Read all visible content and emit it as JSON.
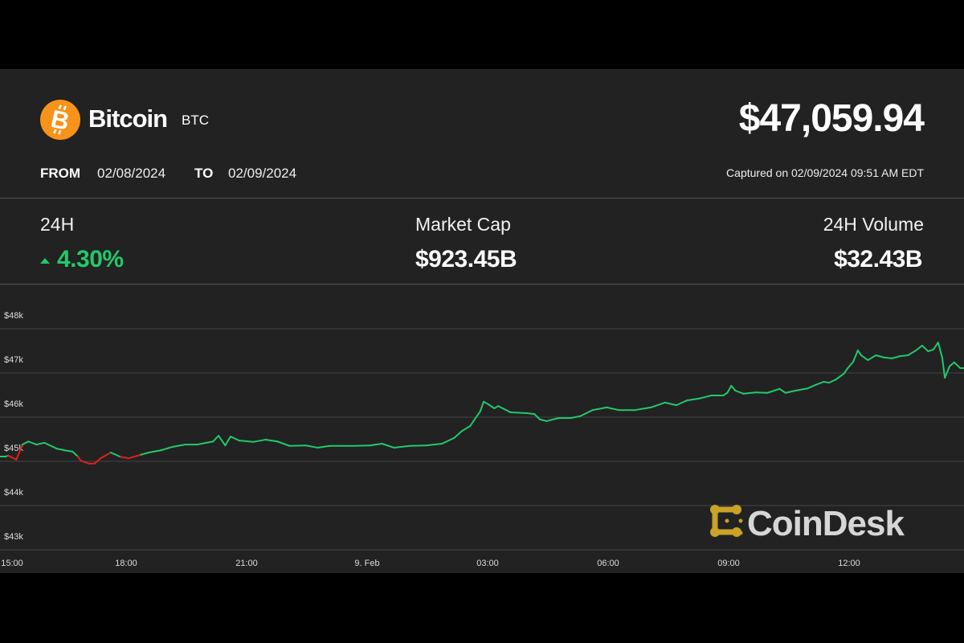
{
  "header": {
    "coin_name": "Bitcoin",
    "ticker": "BTC",
    "logo_icon": "bitcoin-icon",
    "price": "$47,059.94",
    "from_label": "FROM",
    "from_date": "02/08/2024",
    "to_label": "TO",
    "to_date": "02/09/2024",
    "captured": "Captured on 02/09/2024 09:51 AM EDT"
  },
  "stats": [
    {
      "label": "24H",
      "value": "4.30%",
      "direction": "up"
    },
    {
      "label": "Market Cap",
      "value": "$923.45B"
    },
    {
      "label": "24H Volume",
      "value": "$32.43B"
    }
  ],
  "colors": {
    "up": "#22c96b",
    "down": "#e0201b",
    "bitcoin": "#f7931a",
    "brand": "#c9a227"
  },
  "brand": {
    "name": "CoinDesk"
  },
  "chart_data": {
    "type": "line",
    "title": "",
    "xlabel": "",
    "ylabel": "",
    "grid": true,
    "ylim": [
      43000,
      48000
    ],
    "xlim": [
      "2024-02-08T14:52",
      "2024-02-09T14:52"
    ],
    "y_ticks": [
      "$48k",
      "$47k",
      "$46k",
      "$45k",
      "$44k",
      "$43k"
    ],
    "y_tick_values": [
      48000,
      47000,
      46000,
      45000,
      44000,
      43000
    ],
    "x_ticks": [
      "15:00",
      "18:00",
      "21:00",
      "9. Feb",
      "03:00",
      "06:00",
      "09:00",
      "12:00"
    ],
    "x_tick_values": [
      "2024-02-08T15:00",
      "2024-02-08T18:00",
      "2024-02-08T21:00",
      "2024-02-09T00:00",
      "2024-02-09T03:00",
      "2024-02-09T06:00",
      "2024-02-09T09:00",
      "2024-02-09T12:00"
    ],
    "points": [
      [
        "2024-02-08T14:52",
        45110
      ],
      [
        "2024-02-08T15:00",
        45110
      ],
      [
        "2024-02-08T15:04",
        45130
      ],
      [
        "2024-02-08T15:16",
        45040
      ],
      [
        "2024-02-08T15:25",
        45380
      ],
      [
        "2024-02-08T15:34",
        45450
      ],
      [
        "2024-02-08T15:46",
        45380
      ],
      [
        "2024-02-08T15:58",
        45420
      ],
      [
        "2024-02-08T16:16",
        45290
      ],
      [
        "2024-02-08T16:28",
        45250
      ],
      [
        "2024-02-08T16:40",
        45220
      ],
      [
        "2024-02-08T16:48",
        45110
      ],
      [
        "2024-02-08T16:52",
        45020
      ],
      [
        "2024-02-08T17:04",
        44950
      ],
      [
        "2024-02-08T17:13",
        44950
      ],
      [
        "2024-02-08T17:22",
        45070
      ],
      [
        "2024-02-08T17:37",
        45200
      ],
      [
        "2024-02-08T17:52",
        45100
      ],
      [
        "2024-02-08T18:04",
        45070
      ],
      [
        "2024-02-08T18:22",
        45150
      ],
      [
        "2024-02-08T18:34",
        45200
      ],
      [
        "2024-02-08T18:52",
        45250
      ],
      [
        "2024-02-08T19:10",
        45330
      ],
      [
        "2024-02-08T19:28",
        45380
      ],
      [
        "2024-02-08T19:46",
        45380
      ],
      [
        "2024-02-08T20:10",
        45450
      ],
      [
        "2024-02-08T20:18",
        45580
      ],
      [
        "2024-02-08T20:28",
        45360
      ],
      [
        "2024-02-08T20:36",
        45560
      ],
      [
        "2024-02-08T20:49",
        45470
      ],
      [
        "2024-02-08T21:10",
        45440
      ],
      [
        "2024-02-08T21:28",
        45490
      ],
      [
        "2024-02-08T21:46",
        45450
      ],
      [
        "2024-02-08T22:04",
        45350
      ],
      [
        "2024-02-08T22:28",
        45360
      ],
      [
        "2024-02-08T22:46",
        45310
      ],
      [
        "2024-02-08T23:04",
        45350
      ],
      [
        "2024-02-08T23:22",
        45350
      ],
      [
        "2024-02-08T23:40",
        45350
      ],
      [
        "2024-02-09T00:04",
        45360
      ],
      [
        "2024-02-09T00:22",
        45400
      ],
      [
        "2024-02-09T00:40",
        45310
      ],
      [
        "2024-02-09T01:04",
        45350
      ],
      [
        "2024-02-09T01:28",
        45360
      ],
      [
        "2024-02-09T01:52",
        45400
      ],
      [
        "2024-02-09T02:10",
        45530
      ],
      [
        "2024-02-09T02:22",
        45690
      ],
      [
        "2024-02-09T02:34",
        45800
      ],
      [
        "2024-02-09T02:42",
        45980
      ],
      [
        "2024-02-09T02:49",
        46130
      ],
      [
        "2024-02-09T02:54",
        46350
      ],
      [
        "2024-02-09T03:01",
        46290
      ],
      [
        "2024-02-09T03:10",
        46200
      ],
      [
        "2024-02-09T03:16",
        46250
      ],
      [
        "2024-02-09T03:34",
        46110
      ],
      [
        "2024-02-09T03:58",
        46090
      ],
      [
        "2024-02-09T04:10",
        46070
      ],
      [
        "2024-02-09T04:18",
        45950
      ],
      [
        "2024-02-09T04:28",
        45910
      ],
      [
        "2024-02-09T04:46",
        45980
      ],
      [
        "2024-02-09T05:04",
        45980
      ],
      [
        "2024-02-09T05:18",
        46020
      ],
      [
        "2024-02-09T05:37",
        46160
      ],
      [
        "2024-02-09T05:58",
        46220
      ],
      [
        "2024-02-09T06:16",
        46160
      ],
      [
        "2024-02-09T06:40",
        46160
      ],
      [
        "2024-02-09T07:04",
        46220
      ],
      [
        "2024-02-09T07:25",
        46330
      ],
      [
        "2024-02-09T07:42",
        46270
      ],
      [
        "2024-02-09T07:58",
        46380
      ],
      [
        "2024-02-09T08:16",
        46420
      ],
      [
        "2024-02-09T08:34",
        46490
      ],
      [
        "2024-02-09T08:52",
        46490
      ],
      [
        "2024-02-09T08:58",
        46550
      ],
      [
        "2024-02-09T09:04",
        46710
      ],
      [
        "2024-02-09T09:10",
        46600
      ],
      [
        "2024-02-09T09:22",
        46530
      ],
      [
        "2024-02-09T09:40",
        46560
      ],
      [
        "2024-02-09T09:58",
        46550
      ],
      [
        "2024-02-09T10:16",
        46640
      ],
      [
        "2024-02-09T10:25",
        46550
      ],
      [
        "2024-02-09T10:40",
        46600
      ],
      [
        "2024-02-09T10:58",
        46650
      ],
      [
        "2024-02-09T11:10",
        46730
      ],
      [
        "2024-02-09T11:22",
        46800
      ],
      [
        "2024-02-09T11:30",
        46780
      ],
      [
        "2024-02-09T11:40",
        46850
      ],
      [
        "2024-02-09T11:52",
        46980
      ],
      [
        "2024-02-09T11:58",
        47110
      ],
      [
        "2024-02-09T12:06",
        47250
      ],
      [
        "2024-02-09T12:13",
        47510
      ],
      [
        "2024-02-09T12:18",
        47400
      ],
      [
        "2024-02-09T12:28",
        47290
      ],
      [
        "2024-02-09T12:40",
        47400
      ],
      [
        "2024-02-09T12:52",
        47350
      ],
      [
        "2024-02-09T13:04",
        47330
      ],
      [
        "2024-02-09T13:16",
        47380
      ],
      [
        "2024-02-09T13:28",
        47400
      ],
      [
        "2024-02-09T13:40",
        47510
      ],
      [
        "2024-02-09T13:49",
        47620
      ],
      [
        "2024-02-09T13:58",
        47490
      ],
      [
        "2024-02-09T14:06",
        47530
      ],
      [
        "2024-02-09T14:13",
        47690
      ],
      [
        "2024-02-09T14:19",
        47350
      ],
      [
        "2024-02-09T14:23",
        46890
      ],
      [
        "2024-02-09T14:30",
        47150
      ],
      [
        "2024-02-09T14:37",
        47240
      ],
      [
        "2024-02-09T14:46",
        47110
      ],
      [
        "2024-02-09T14:52",
        47110
      ]
    ]
  }
}
